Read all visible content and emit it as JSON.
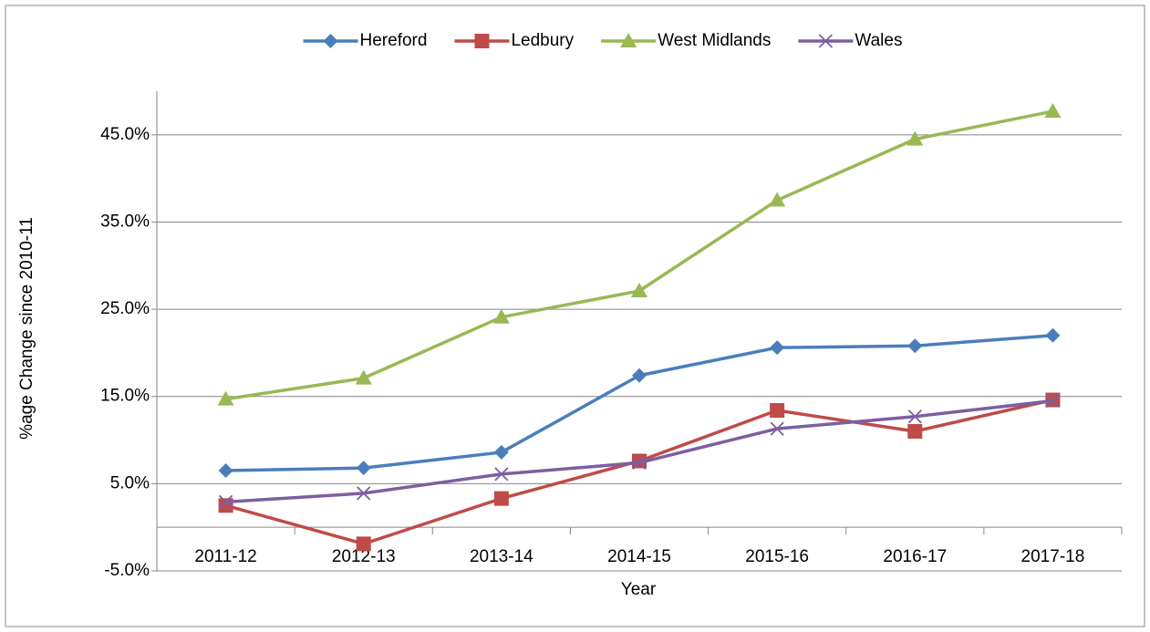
{
  "chart_data": {
    "type": "line",
    "categories": [
      "2011-12",
      "2012-13",
      "2013-14",
      "2014-15",
      "2015-16",
      "2016-17",
      "2017-18"
    ],
    "series": [
      {
        "name": "Hereford",
        "color": "#4a7ebb",
        "marker": "diamond",
        "values": [
          6.5,
          6.8,
          8.6,
          17.4,
          20.6,
          20.8,
          22.0
        ]
      },
      {
        "name": "Ledbury",
        "color": "#be4b48",
        "marker": "square",
        "values": [
          2.5,
          -1.9,
          3.3,
          7.6,
          13.4,
          11.0,
          14.6
        ]
      },
      {
        "name": "West Midlands",
        "color": "#98b954",
        "marker": "triangle",
        "values": [
          14.7,
          17.1,
          24.1,
          27.1,
          37.5,
          44.5,
          47.7
        ]
      },
      {
        "name": "Wales",
        "color": "#7d5fa0",
        "marker": "x",
        "values": [
          2.9,
          3.9,
          6.1,
          7.4,
          11.3,
          12.7,
          14.5
        ]
      }
    ],
    "ylim": [
      -5,
      50
    ],
    "yticks": [
      {
        "value": -5,
        "label": "-5.0%"
      },
      {
        "value": 5,
        "label": "5.0%"
      },
      {
        "value": 15,
        "label": "15.0%"
      },
      {
        "value": 25,
        "label": "25.0%"
      },
      {
        "value": 35,
        "label": "35.0%"
      },
      {
        "value": 45,
        "label": "45.0%"
      }
    ],
    "x_label": "Year",
    "y_label": "%age Change since 2010-11",
    "grid": true,
    "legend": "top"
  }
}
